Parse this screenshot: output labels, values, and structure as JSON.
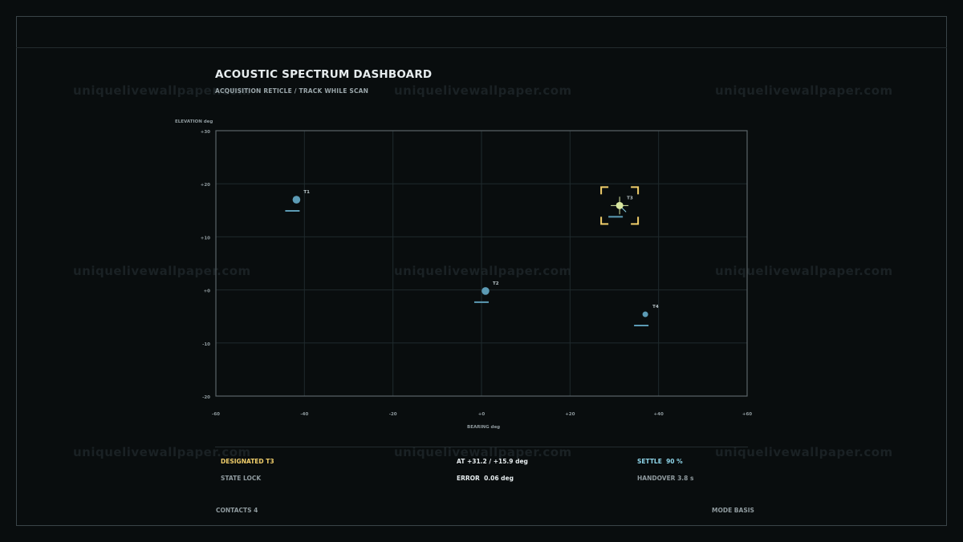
{
  "header": {
    "title": "ACOUSTIC SPECTRUM DASHBOARD",
    "subtitle": "ACQUISITION RETICLE / TRACK WHILE SCAN"
  },
  "watermark": "uniquelivewallpaper.com",
  "colors": {
    "background": "#090d0e",
    "contact": "#5c9bb5",
    "designated_marker": "#d8e6a0",
    "reticle": "#f2cf6b",
    "grid": "#1f2a2d",
    "plot_border": "#5a6468"
  },
  "chart_data": {
    "type": "scatter",
    "xlabel": "BEARING deg",
    "ylabel": "ELEVATION deg",
    "xlim": [
      -60,
      60
    ],
    "ylim": [
      -20,
      30
    ],
    "x_ticks": [
      -60,
      -40,
      -20,
      0,
      20,
      40,
      60
    ],
    "x_tick_labels": [
      "-60",
      "-40",
      "-20",
      "+0",
      "+20",
      "+40",
      "+60"
    ],
    "y_ticks": [
      30,
      20,
      10,
      0,
      -10,
      -20
    ],
    "y_tick_labels": [
      "+30",
      "+20",
      "+10",
      "+0",
      "-10",
      "-20"
    ],
    "grid": true,
    "points": [
      {
        "label": "T1",
        "x": -41.8,
        "y": 17.0,
        "designated": false
      },
      {
        "label": "T2",
        "x": 0.9,
        "y": -0.2,
        "designated": false
      },
      {
        "label": "T3",
        "x": 31.2,
        "y": 15.9,
        "designated": true
      },
      {
        "label": "T4",
        "x": 37.0,
        "y": -4.6,
        "designated": false
      }
    ]
  },
  "status": {
    "designated": "DESIGNATED T3",
    "state": "STATE LOCK",
    "at": "AT +31.2 / +15.9 deg",
    "error_label": "ERROR",
    "error_value": "0.06 deg",
    "settle_label": "SETTLE",
    "settle_value": "90 %",
    "handover": "HANDOVER 3.8 s"
  },
  "footer": {
    "contacts": "CONTACTS 4",
    "mode": "MODE BASIS"
  }
}
